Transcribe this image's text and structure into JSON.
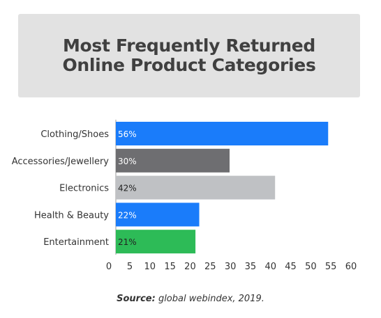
{
  "title": "Most Frequently Returned Online Product Categories",
  "source": {
    "label": "Source:",
    "text": "global webindex, 2019."
  },
  "chart_data": {
    "type": "bar",
    "orientation": "horizontal",
    "categories": [
      "Clothing/Shoes",
      "Accessories/Jewellery",
      "Electronics",
      "Health & Beauty",
      "Entertainment"
    ],
    "values": [
      56,
      30,
      42,
      22,
      21
    ],
    "data_labels": [
      "56%",
      "30%",
      "42%",
      "22%",
      "21%"
    ],
    "colors": [
      "#1a7cfa",
      "#6e6e71",
      "#bfc1c4",
      "#1a7cfa",
      "#2dbb57"
    ],
    "label_colors": [
      "#ffffff",
      "#ffffff",
      "#222222",
      "#ffffff",
      "#222222"
    ],
    "xticks": [
      0,
      5,
      10,
      15,
      20,
      25,
      30,
      35,
      40,
      45,
      50,
      55,
      60
    ],
    "xlim": [
      0,
      60
    ],
    "grid": false,
    "legend": "none"
  }
}
